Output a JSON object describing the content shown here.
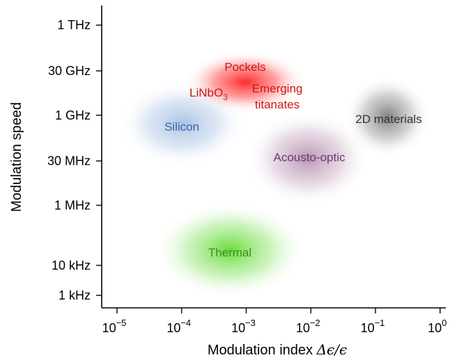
{
  "chart_data": {
    "type": "scatter",
    "title": "",
    "xlabel_text": "Modulation index ",
    "xlabel_math": "Δϵ/ϵ",
    "ylabel": "Modulation speed",
    "x_scale": "log",
    "y_scale": "log",
    "xlim": [
      1e-05,
      1
    ],
    "ylim_hz": [
      1000,
      1000000000000.0
    ],
    "x_ticks": [
      {
        "value": 1e-05,
        "base": "10",
        "exp": "−5"
      },
      {
        "value": 0.0001,
        "base": "10",
        "exp": "−4"
      },
      {
        "value": 0.001,
        "base": "10",
        "exp": "−3"
      },
      {
        "value": 0.01,
        "base": "10",
        "exp": "−2"
      },
      {
        "value": 0.1,
        "base": "10",
        "exp": "−1"
      },
      {
        "value": 1,
        "base": "10",
        "exp": "0"
      }
    ],
    "y_ticks": [
      {
        "value": 1000.0,
        "label": "1 kHz"
      },
      {
        "value": 10000.0,
        "label": "10 kHz"
      },
      {
        "value": 1000000.0,
        "label": "1 MHz"
      },
      {
        "value": 30000000.0,
        "label": "30 MHz"
      },
      {
        "value": 1000000000.0,
        "label": "1 GHz"
      },
      {
        "value": 30000000000.0,
        "label": "30 GHz"
      },
      {
        "value": 1000000000000.0,
        "label": "1 THz"
      }
    ],
    "grid": false,
    "legend": "none",
    "regions": [
      {
        "name": "Silicon",
        "x": 0.0001,
        "y": 300000000.0,
        "color": "#9bb7dd",
        "text_color": "#3b63a6"
      },
      {
        "name": "Pockels",
        "x": 0.0008,
        "y": 20000000000.0,
        "color": "#ff3b3b",
        "text_color": "#c81818"
      },
      {
        "name": "LiNbO3",
        "x": 0.0003,
        "y": 4000000000.0,
        "color": "#ff3b3b",
        "text_color": "#c81818"
      },
      {
        "name": "Emerging titanates",
        "x": 0.002,
        "y": 3000000000.0,
        "color": "#ff3b3b",
        "text_color": "#c81818"
      },
      {
        "name": "2D materials",
        "x": 0.2,
        "y": 600000000.0,
        "color": "#8a8a8a",
        "text_color": "#333333"
      },
      {
        "name": "Acousto-optic",
        "x": 0.01,
        "y": 30000000.0,
        "color": "#b48ab0",
        "text_color": "#6b3a70"
      },
      {
        "name": "Thermal",
        "x": 0.0006,
        "y": 10000.0,
        "color": "#6fe04a",
        "text_color": "#3a8f22"
      }
    ]
  },
  "labels": {
    "silicon": "Silicon",
    "pockels": "Pockels",
    "linbo_base": "LiNbO",
    "linbo_sub": "3",
    "emerging_1": "Emerging",
    "emerging_2": "titanates",
    "twod": "2D materials",
    "acousto": "Acousto-optic",
    "thermal": "Thermal"
  }
}
